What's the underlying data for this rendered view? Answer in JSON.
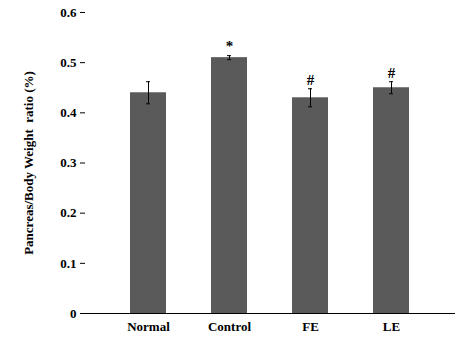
{
  "chart_data": {
    "type": "bar",
    "y_label": "Pancreas/Body Weight  ratio (%)",
    "categories": [
      "Normal",
      "Control",
      "FE",
      "LE"
    ],
    "values": [
      0.44,
      0.51,
      0.43,
      0.45
    ],
    "errors": [
      0.022,
      0.004,
      0.018,
      0.012
    ],
    "annotations": [
      null,
      "*",
      "#",
      "#"
    ],
    "color": "#5a5a5a",
    "ylim": [
      0,
      0.6
    ],
    "yticks": [
      0,
      0.1,
      0.2,
      0.3,
      0.4,
      0.5,
      0.6
    ],
    "grid": false
  }
}
